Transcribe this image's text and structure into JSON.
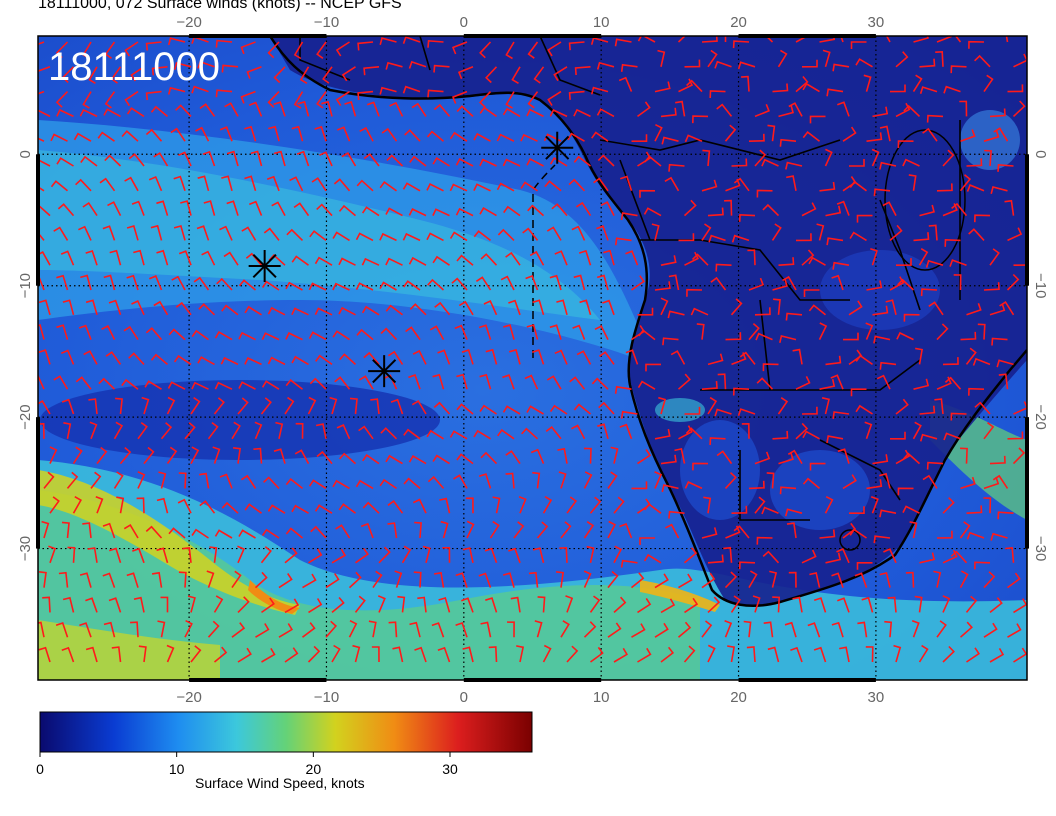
{
  "title": "18111000, 072 Surface winds (knots) -- NCEP GFS",
  "stamp": "18111000",
  "lon_ticks": [
    "−20",
    "−10",
    "0",
    "10",
    "20",
    "30"
  ],
  "lat_ticks": [
    "0",
    "−10",
    "−20",
    "−30"
  ],
  "colorbar": {
    "title": "Surface Wind Speed, knots",
    "ticks": [
      "0",
      "10",
      "20",
      "30"
    ],
    "range": [
      0,
      36
    ],
    "colors": [
      "#0a0a6e",
      "#0a3cd2",
      "#1e8cf0",
      "#3cc8dc",
      "#64d278",
      "#d2d21e",
      "#f08c14",
      "#dc1e1e",
      "#7a0000"
    ]
  },
  "map_extent": {
    "lon": [
      -31,
      41
    ],
    "lat": [
      -40,
      9
    ]
  },
  "markers": [
    {
      "name": "storm-marker-1",
      "lon": -14.5,
      "lat": -8.5
    },
    {
      "name": "storm-marker-2",
      "lon": -5.8,
      "lat": -16.5
    },
    {
      "name": "storm-marker-3",
      "lon": 6.8,
      "lat": 0.5
    }
  ],
  "colors": {
    "barb": "#ff1a1a",
    "coast": "#000000",
    "grid": "#000000"
  }
}
